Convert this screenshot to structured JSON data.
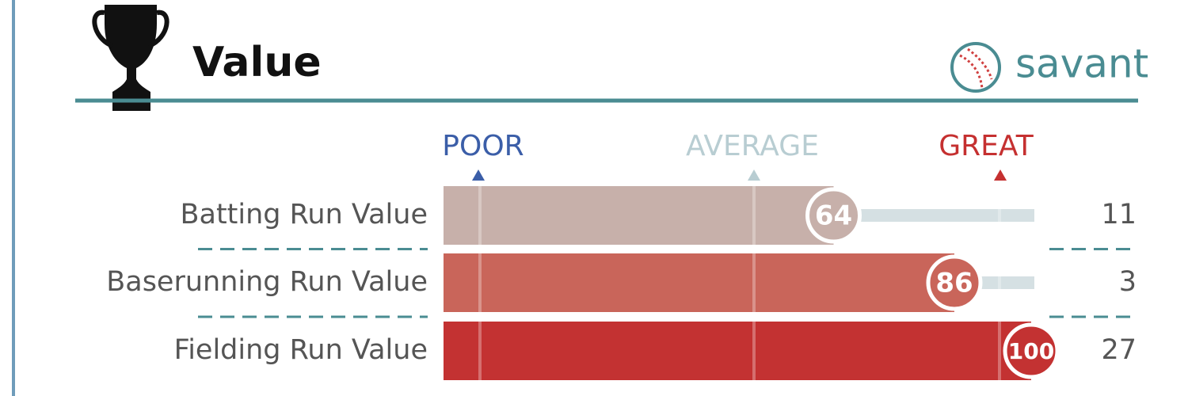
{
  "chart_data": {
    "type": "percentile_bar",
    "title": "Value",
    "brand": "savant",
    "scale_labels": [
      "POOR",
      "AVERAGE",
      "GREAT"
    ],
    "categories": [
      "Batting Run Value",
      "Baserunning Run Value",
      "Fielding Run Value"
    ],
    "values": [
      64,
      86,
      100
    ],
    "colors": [
      "#c7b0aa",
      "#c9655a",
      "#c33232"
    ],
    "stat_values": [
      11,
      3,
      27
    ],
    "xlim": [
      0,
      100
    ]
  }
}
